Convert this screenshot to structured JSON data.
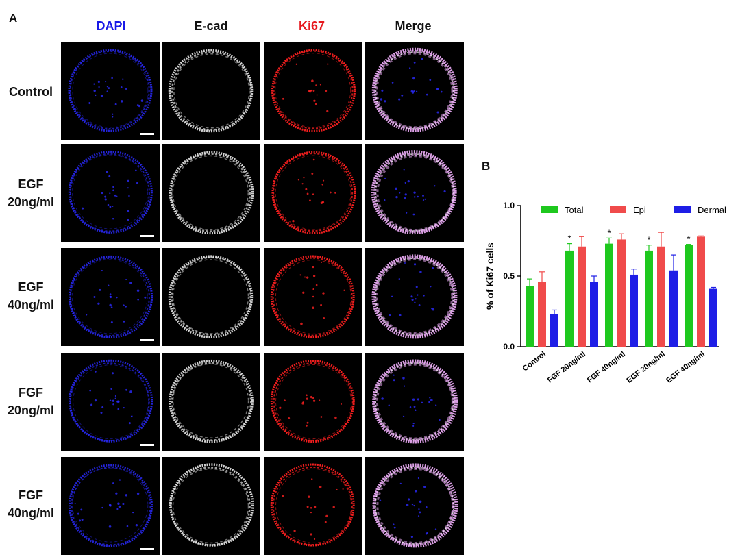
{
  "panels": {
    "a": "A",
    "b": "B"
  },
  "columns": [
    {
      "label": "DAPI",
      "color": "#1a1ae6"
    },
    {
      "label": "E-cad",
      "color": "#111111"
    },
    {
      "label": "Ki67",
      "color": "#e6191e"
    },
    {
      "label": "Merge",
      "color": "#111111"
    }
  ],
  "rows": [
    {
      "line1": "Control",
      "line2": ""
    },
    {
      "line1": "EGF",
      "line2": "20ng/ml"
    },
    {
      "line1": "EGF",
      "line2": "40ng/ml"
    },
    {
      "line1": "FGF",
      "line2": "20ng/ml"
    },
    {
      "line1": "FGF",
      "line2": "40ng/ml"
    }
  ],
  "channel_colors": {
    "dapi": "#2a2aff",
    "ecad": "#e8e8e8",
    "ki67": "#ff2020",
    "merge": "#e6a6f0"
  },
  "chart_data": {
    "type": "bar",
    "title": "",
    "ylabel": "% of Ki67 cells",
    "xlabel": "",
    "ylim": [
      0,
      1.0
    ],
    "yticks": [
      "0.0",
      "0.5",
      "1.0"
    ],
    "categories": [
      "Control",
      "FGF 20ng/ml",
      "FGF 40ng/ml",
      "EGF 20ng/ml",
      "EGF 40ng/ml"
    ],
    "series": [
      {
        "name": "Total",
        "color": "#1ec81e",
        "values": [
          0.43,
          0.68,
          0.73,
          0.68,
          0.72
        ],
        "errors": [
          0.05,
          0.05,
          0.04,
          0.04,
          0.005
        ]
      },
      {
        "name": "Epi",
        "color": "#f04b4b",
        "values": [
          0.46,
          0.71,
          0.76,
          0.71,
          0.78
        ],
        "errors": [
          0.07,
          0.07,
          0.04,
          0.1,
          0.005
        ]
      },
      {
        "name": "Dermal",
        "color": "#1e1ee6",
        "values": [
          0.23,
          0.46,
          0.51,
          0.54,
          0.41
        ],
        "errors": [
          0.03,
          0.04,
          0.04,
          0.11,
          0.01
        ]
      }
    ],
    "significance": [
      "",
      "*",
      "*",
      "*",
      "*"
    ],
    "legend_position": "top"
  }
}
